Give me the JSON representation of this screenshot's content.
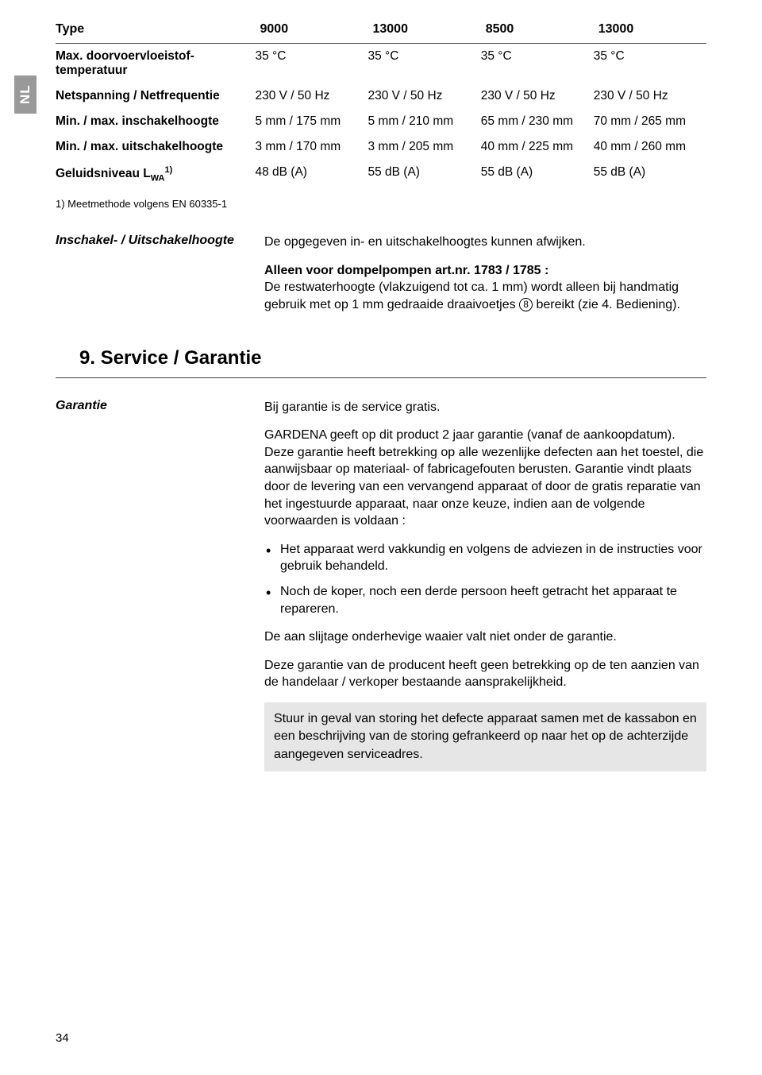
{
  "lang_tab": "NL",
  "table": {
    "header": [
      "Type",
      "9000",
      "13000",
      "8500",
      "13000"
    ],
    "rows": [
      {
        "label_html": "Max. doorvoervloeistof-<br>temperatuur",
        "cells": [
          "35 °C",
          "35 °C",
          "35 °C",
          "35 °C"
        ]
      },
      {
        "label_html": "Netspanning / Netfrequentie",
        "cells": [
          "230 V / 50 Hz",
          "230 V / 50 Hz",
          "230 V / 50 Hz",
          "230 V / 50 Hz"
        ]
      },
      {
        "label_html": "Min. / max. inschakelhoogte",
        "cells": [
          "5 mm / 175 mm",
          "5 mm / 210 mm",
          "65 mm / 230 mm",
          "70 mm / 265 mm"
        ]
      },
      {
        "label_html": "Min. / max. uitschakelhoogte",
        "cells": [
          "3 mm / 170 mm",
          "3 mm / 205 mm",
          "40 mm / 225 mm",
          "40 mm / 260 mm"
        ]
      },
      {
        "label_html": "Geluidsniveau L<span class=\"sub\">WA</span><span class=\"sup\">1)</span>",
        "cells": [
          "48 dB (A)",
          "55 dB (A)",
          "55 dB (A)",
          "55 dB (A)"
        ]
      }
    ]
  },
  "footnote": "1) Meetmethode volgens EN 60335-1",
  "def1": {
    "term": "Inschakel- / Uitschakelhoogte",
    "p1": "De opgegeven in- en uitschakelhoogtes kunnen afwijken.",
    "p2_html": "<strong>Alleen voor dompelpompen art.nr. 1783 / 1785 :</strong><br>De restwaterhoogte (vlakzuigend tot ca. 1 mm) wordt alleen bij handmatig gebruik met op 1 mm gedraaide draaivoetjes <span class=\"circled\">8</span> bereikt (zie 4. Bediening)."
  },
  "section_title": "9. Service / Garantie",
  "def2": {
    "term": "Garantie",
    "p1": "Bij garantie is de service gratis.",
    "p2": "GARDENA geeft op dit product 2 jaar garantie (vanaf de aankoopdatum). Deze garantie heeft betrekking op alle wezenlijke defecten aan het toestel, die aanwijsbaar op materiaal- of fabricagefouten berusten. Garantie vindt plaats door de levering van een vervangend apparaat of door de gratis reparatie van het ingestuurde apparaat, naar onze keuze, indien aan de volgende voorwaarden is voldaan :",
    "bullets": [
      "Het apparaat werd vakkundig en volgens de adviezen in de instructies voor gebruik behandeld.",
      "Noch de koper, noch een derde persoon heeft getracht het apparaat te repareren."
    ],
    "p3": "De aan slijtage onderhevige waaier valt niet onder de garantie.",
    "p4": "Deze garantie van de producent heeft geen betrekking op de ten aanzien van de handelaar / verkoper bestaande aansprakelijkheid.",
    "boxed": "Stuur in geval van storing het defecte apparaat samen met de kassabon en een beschrijving van de storing gefrankeerd op naar het op de achterzijde aangegeven serviceadres."
  },
  "page_num": "34"
}
